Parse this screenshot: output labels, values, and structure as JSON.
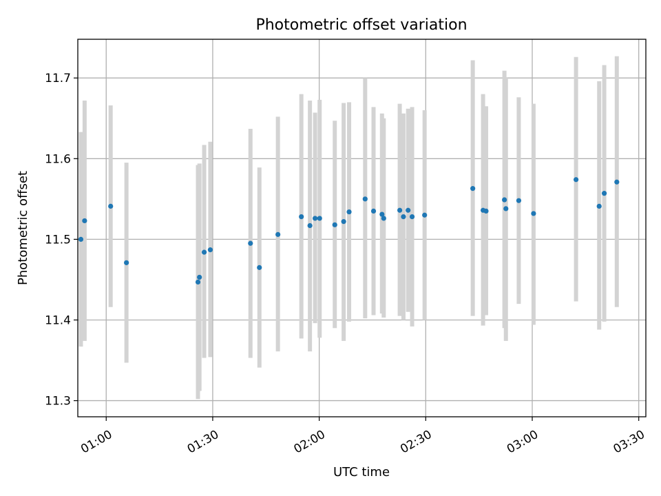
{
  "chart_data": {
    "type": "scatter",
    "title": "Photometric offset variation",
    "xlabel": "UTC time",
    "ylabel": "Photometric offset",
    "xlim": [
      "00:52",
      "03:32"
    ],
    "ylim": [
      11.28,
      11.748
    ],
    "x_ticks": [
      "01:00",
      "01:30",
      "02:00",
      "02:30",
      "03:00",
      "03:30"
    ],
    "y_ticks": [
      "11.3",
      "11.4",
      "11.5",
      "11.6",
      "11.7"
    ],
    "grid": true,
    "colors": {
      "point": "#1f77b4",
      "errorbar": "#d3d3d3",
      "grid": "#b0b0b0"
    },
    "series": [
      {
        "points": [
          {
            "x": "00:52:52",
            "y": 11.5,
            "low": 11.367,
            "high": 11.633
          },
          {
            "x": "00:53:55",
            "y": 11.523,
            "low": 11.374,
            "high": 11.672
          },
          {
            "x": "01:01:15",
            "y": 11.541,
            "low": 11.416,
            "high": 11.666
          },
          {
            "x": "01:05:42",
            "y": 11.471,
            "low": 11.347,
            "high": 11.595
          },
          {
            "x": "01:25:51",
            "y": 11.447,
            "low": 11.302,
            "high": 11.592
          },
          {
            "x": "01:26:16",
            "y": 11.453,
            "low": 11.312,
            "high": 11.594
          },
          {
            "x": "01:27:36",
            "y": 11.484,
            "low": 11.353,
            "high": 11.617
          },
          {
            "x": "01:29:19",
            "y": 11.487,
            "low": 11.354,
            "high": 11.621
          },
          {
            "x": "01:40:38",
            "y": 11.495,
            "low": 11.353,
            "high": 11.637
          },
          {
            "x": "01:43:09",
            "y": 11.465,
            "low": 11.341,
            "high": 11.589
          },
          {
            "x": "01:48:22",
            "y": 11.506,
            "low": 11.361,
            "high": 11.652
          },
          {
            "x": "01:54:58",
            "y": 11.528,
            "low": 11.377,
            "high": 11.68
          },
          {
            "x": "01:57:23",
            "y": 11.517,
            "low": 11.361,
            "high": 11.672
          },
          {
            "x": "01:58:50",
            "y": 11.526,
            "low": 11.396,
            "high": 11.657
          },
          {
            "x": "02:00:07",
            "y": 11.526,
            "low": 11.378,
            "high": 11.673
          },
          {
            "x": "02:04:23",
            "y": 11.518,
            "low": 11.39,
            "high": 11.647
          },
          {
            "x": "02:06:53",
            "y": 11.522,
            "low": 11.374,
            "high": 11.669
          },
          {
            "x": "02:08:25",
            "y": 11.534,
            "low": 11.398,
            "high": 11.67
          },
          {
            "x": "02:12:56",
            "y": 11.55,
            "low": 11.402,
            "high": 11.7
          },
          {
            "x": "02:15:18",
            "y": 11.535,
            "low": 11.406,
            "high": 11.664
          },
          {
            "x": "02:17:41",
            "y": 11.531,
            "low": 11.408,
            "high": 11.656
          },
          {
            "x": "02:18:10",
            "y": 11.526,
            "low": 11.403,
            "high": 11.65
          },
          {
            "x": "02:22:41",
            "y": 11.536,
            "low": 11.405,
            "high": 11.668
          },
          {
            "x": "02:23:43",
            "y": 11.528,
            "low": 11.4,
            "high": 11.656
          },
          {
            "x": "02:25:02",
            "y": 11.536,
            "low": 11.41,
            "high": 11.662
          },
          {
            "x": "02:26:10",
            "y": 11.528,
            "low": 11.392,
            "high": 11.664
          },
          {
            "x": "02:29:41",
            "y": 11.53,
            "low": 11.4,
            "high": 11.66
          },
          {
            "x": "02:43:15",
            "y": 11.563,
            "low": 11.405,
            "high": 11.722
          },
          {
            "x": "02:46:09",
            "y": 11.536,
            "low": 11.393,
            "high": 11.68
          },
          {
            "x": "02:47:00",
            "y": 11.535,
            "low": 11.406,
            "high": 11.665
          },
          {
            "x": "02:52:10",
            "y": 11.549,
            "low": 11.39,
            "high": 11.709
          },
          {
            "x": "02:52:35",
            "y": 11.538,
            "low": 11.374,
            "high": 11.701
          },
          {
            "x": "02:56:12",
            "y": 11.548,
            "low": 11.42,
            "high": 11.676
          },
          {
            "x": "03:00:22",
            "y": 11.532,
            "low": 11.394,
            "high": 11.668
          },
          {
            "x": "03:12:20",
            "y": 11.574,
            "low": 11.423,
            "high": 11.726
          },
          {
            "x": "03:18:51",
            "y": 11.541,
            "low": 11.388,
            "high": 11.696
          },
          {
            "x": "03:20:17",
            "y": 11.557,
            "low": 11.398,
            "high": 11.716
          },
          {
            "x": "03:23:49",
            "y": 11.571,
            "low": 11.416,
            "high": 11.727
          }
        ]
      }
    ]
  }
}
